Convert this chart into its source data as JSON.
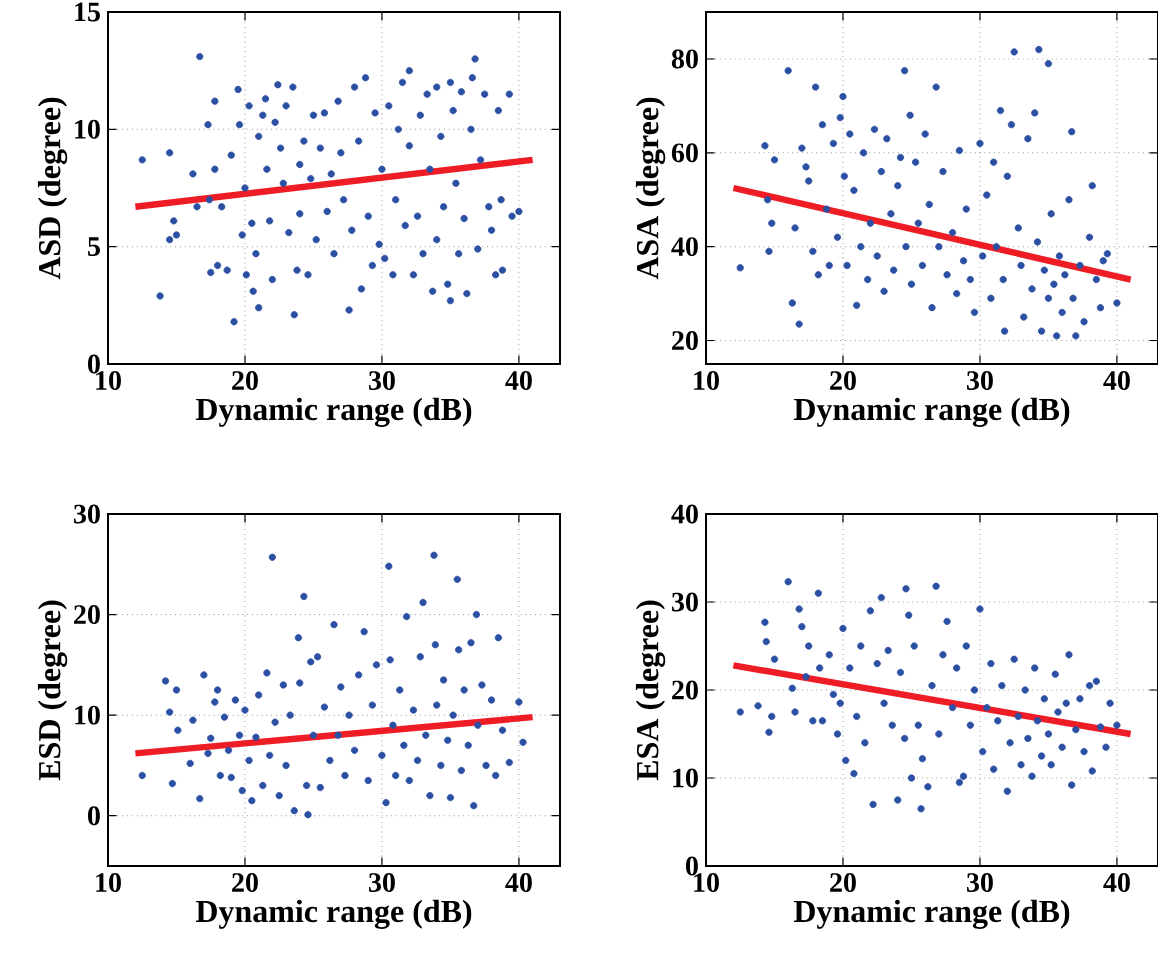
{
  "chart_data": [
    {
      "type": "scatter",
      "xlabel": "Dynamic range (dB)",
      "ylabel": "ASD (degree)",
      "xlim": [
        10,
        43
      ],
      "ylim": [
        0,
        15
      ],
      "xticks": [
        10,
        20,
        30,
        40
      ],
      "yticks": [
        0,
        5,
        10,
        15
      ],
      "grid": true,
      "series": [
        {
          "color": "#2b4fa2",
          "marker": "circle",
          "x": [
            12.5,
            13.8,
            14.5,
            14.5,
            15,
            14.8,
            16.2,
            16.7,
            16.5,
            17.3,
            17.4,
            17.5,
            17.8,
            17.8,
            18,
            18.3,
            18.7,
            19,
            19.2,
            19.5,
            19.6,
            19.8,
            20,
            20.1,
            20.3,
            20.5,
            20.6,
            20.8,
            21,
            21,
            21.3,
            21.5,
            21.6,
            21.8,
            22,
            22.2,
            22.4,
            22.6,
            22.8,
            23,
            23.2,
            23.5,
            23.6,
            23.8,
            24,
            24,
            24.3,
            24.6,
            24.8,
            25,
            25.2,
            25.5,
            25.8,
            26,
            26.3,
            26.5,
            26.8,
            27,
            27.2,
            27.6,
            27.8,
            28,
            28.3,
            28.5,
            28.8,
            29,
            29.3,
            29.5,
            29.8,
            30,
            30.2,
            30.5,
            30.8,
            31,
            31.2,
            31.5,
            31.7,
            32,
            32,
            32.3,
            32.6,
            32.8,
            33,
            33.3,
            33.5,
            33.7,
            34,
            34,
            34.3,
            34.5,
            34.8,
            35,
            35,
            35.2,
            35.4,
            35.6,
            35.8,
            36,
            36.2,
            36.5,
            36.6,
            36.8,
            37,
            37.2,
            37.5,
            37.8,
            38,
            38.3,
            38.5,
            38.8,
            39.3,
            39.5,
            40,
            38.7
          ],
          "values": [
            8.7,
            2.9,
            9.0,
            5.3,
            5.5,
            6.1,
            8.1,
            13.1,
            6.7,
            10.2,
            7.0,
            3.9,
            11.2,
            8.3,
            4.2,
            6.7,
            4.0,
            8.9,
            1.8,
            11.7,
            10.2,
            5.5,
            7.5,
            3.8,
            11,
            6,
            3.1,
            4.7,
            2.4,
            9.7,
            10.6,
            11.3,
            8.3,
            6.1,
            3.6,
            10.3,
            11.9,
            9.2,
            7.7,
            11.0,
            5.6,
            11.8,
            2.1,
            4.0,
            8.5,
            6.4,
            9.5,
            3.8,
            7.9,
            10.6,
            5.3,
            9.2,
            10.7,
            6.5,
            8.1,
            4.7,
            11.2,
            9.0,
            7.0,
            2.3,
            5.7,
            11.8,
            9.5,
            3.2,
            12.2,
            6.3,
            4.2,
            10.7,
            5.1,
            8.3,
            4.5,
            11,
            3.8,
            7.0,
            10.0,
            12.0,
            5.9,
            12.5,
            9.3,
            3.8,
            6.3,
            10.6,
            4.7,
            11.5,
            8.3,
            3.1,
            11.8,
            5.3,
            9.7,
            6.7,
            3.4,
            12.0,
            2.7,
            10.8,
            7.7,
            4.7,
            11.6,
            6.2,
            3.0,
            10.0,
            12.2,
            13.0,
            4.9,
            8.7,
            11.5,
            6.7,
            5.7,
            3.8,
            10.8,
            4.0,
            11.5,
            6.3,
            6.5,
            7.0
          ]
        },
        {
          "type": "line",
          "color": "#ee1c25",
          "x": [
            12,
            41
          ],
          "values": [
            6.7,
            8.7
          ],
          "marker": "none"
        }
      ]
    },
    {
      "type": "scatter",
      "xlabel": "Dynamic range (dB)",
      "ylabel": "ASA (degree)",
      "xlim": [
        10,
        43
      ],
      "ylim": [
        15,
        90
      ],
      "xticks": [
        10,
        20,
        30,
        40
      ],
      "yticks": [
        20,
        40,
        60,
        80
      ],
      "grid": true,
      "series": [
        {
          "color": "#2b4fa2",
          "marker": "circle",
          "x": [
            12.5,
            14.3,
            14.5,
            14.6,
            14.8,
            15,
            16,
            16.3,
            16.5,
            16.8,
            17,
            17.3,
            17.5,
            17.8,
            18,
            18.2,
            18.5,
            18.8,
            19,
            19.3,
            19.6,
            19.8,
            20,
            20.1,
            20.3,
            20.5,
            20.8,
            21,
            21.3,
            21.5,
            21.8,
            22,
            22.3,
            22.5,
            22.8,
            23,
            23.2,
            23.5,
            23.7,
            24,
            24.2,
            24.5,
            24.6,
            24.9,
            25,
            25.3,
            25.5,
            25.8,
            26,
            26.3,
            26.5,
            26.8,
            27,
            27.3,
            27.6,
            28,
            28.3,
            28.5,
            28.8,
            29,
            29.3,
            29.6,
            30,
            30.2,
            30.5,
            30.8,
            31,
            31.2,
            31.5,
            31.7,
            31.8,
            32,
            32.3,
            32.5,
            32.8,
            33,
            33.2,
            33.5,
            33.8,
            34,
            34.2,
            34.3,
            34.5,
            34.7,
            35,
            35,
            35.2,
            35.4,
            35.6,
            35.8,
            36,
            36.2,
            36.5,
            36.7,
            36.8,
            37,
            37.3,
            37.6,
            38,
            38.2,
            38.5,
            38.8,
            39,
            39.3,
            40
          ],
          "values": [
            35.5,
            61.5,
            50,
            39,
            45,
            58.5,
            77.5,
            28,
            44,
            23.5,
            61,
            57,
            54,
            39,
            74,
            34,
            66,
            48,
            36,
            62,
            42,
            67.5,
            72,
            55,
            36,
            64,
            52,
            27.5,
            40,
            60,
            33,
            45,
            65,
            38,
            56,
            30.5,
            63,
            47,
            35,
            53,
            59,
            77.5,
            40,
            68,
            32,
            58,
            45,
            36,
            64,
            49,
            27,
            74,
            40,
            56,
            34,
            43,
            30,
            60.5,
            37,
            48,
            33,
            26,
            62,
            38,
            51,
            29,
            58,
            40,
            69,
            33,
            22,
            55,
            66,
            81.5,
            44,
            36,
            25,
            63,
            31,
            68.5,
            41,
            82,
            22,
            35,
            79,
            29,
            47,
            32,
            21,
            38,
            26,
            34,
            50,
            64.5,
            29,
            21,
            36,
            24,
            42,
            53,
            33,
            27,
            37,
            38.5,
            28
          ]
        },
        {
          "type": "line",
          "color": "#ee1c25",
          "x": [
            12,
            41
          ],
          "values": [
            52.5,
            33
          ],
          "marker": "none"
        }
      ]
    },
    {
      "type": "scatter",
      "xlabel": "Dynamic range (dB)",
      "ylabel": "ESD (degree)",
      "xlim": [
        10,
        43
      ],
      "ylim": [
        -5,
        30
      ],
      "xticks": [
        10,
        20,
        30,
        40
      ],
      "yticks": [
        0,
        10,
        20,
        30
      ],
      "grid": true,
      "series": [
        {
          "color": "#2b4fa2",
          "marker": "circle",
          "x": [
            12.5,
            14.2,
            14.5,
            14.7,
            15,
            15.1,
            16,
            16.2,
            16.7,
            17,
            17.3,
            17.5,
            17.8,
            18,
            18.2,
            18.5,
            18.8,
            19,
            19.3,
            19.6,
            19.8,
            20,
            20.3,
            20.5,
            20.8,
            21,
            21.3,
            21.6,
            21.8,
            22,
            22.2,
            22.5,
            22.8,
            23,
            23.3,
            23.6,
            23.9,
            24,
            24.3,
            24.5,
            24.6,
            24.8,
            25,
            25.3,
            25.5,
            25.8,
            26.2,
            26.5,
            26.8,
            27,
            27.3,
            27.6,
            28,
            28.3,
            28.7,
            29,
            29.3,
            29.6,
            30,
            30.3,
            30.5,
            30.6,
            30.8,
            31,
            31.3,
            31.6,
            31.8,
            32,
            32.3,
            32.6,
            32.8,
            33,
            33.2,
            33.5,
            33.8,
            33.9,
            34,
            34.3,
            34.5,
            34.8,
            35,
            35.2,
            35.5,
            35.6,
            35.8,
            36,
            36.3,
            36.5,
            36.7,
            36.9,
            37,
            37.3,
            37.6,
            38,
            38.3,
            38.5,
            38.8,
            39.3,
            40,
            40.3
          ],
          "values": [
            4,
            13.4,
            10.3,
            3.2,
            12.5,
            8.5,
            5.2,
            9.5,
            1.7,
            14,
            6.2,
            7.7,
            11.3,
            12.5,
            4,
            9.8,
            6.5,
            3.8,
            11.5,
            8,
            2.5,
            10.5,
            5.5,
            1.5,
            7.8,
            12,
            3,
            14.2,
            6,
            25.7,
            9.3,
            2,
            13,
            5,
            10,
            0.5,
            17.7,
            13.2,
            21.8,
            3,
            0.1,
            15.3,
            8,
            15.8,
            2.8,
            10.8,
            5.5,
            19,
            8,
            12.8,
            4,
            10,
            6.5,
            14,
            18.3,
            3.5,
            11,
            15,
            6,
            1.3,
            24.8,
            15.5,
            9,
            4,
            12.5,
            7,
            19.8,
            3.5,
            10.5,
            5.5,
            15.8,
            21.2,
            8,
            2,
            25.9,
            17,
            11,
            5,
            13.5,
            7.5,
            1.8,
            10,
            23.5,
            16.5,
            4.5,
            12.5,
            7,
            17.2,
            1,
            20,
            9,
            13,
            5,
            11.5,
            4,
            17.7,
            8.5,
            5.3,
            11.3,
            7.3
          ]
        },
        {
          "type": "line",
          "color": "#ee1c25",
          "x": [
            12,
            41
          ],
          "values": [
            6.2,
            9.8
          ],
          "marker": "none"
        }
      ]
    },
    {
      "type": "scatter",
      "xlabel": "Dynamic range (dB)",
      "ylabel": "ESA (degree)",
      "xlim": [
        10,
        43
      ],
      "ylim": [
        0,
        40
      ],
      "xticks": [
        10,
        20,
        30,
        40
      ],
      "yticks": [
        0,
        10,
        20,
        30,
        40
      ],
      "grid": true,
      "series": [
        {
          "color": "#2b4fa2",
          "marker": "circle",
          "x": [
            12.5,
            13.8,
            14.3,
            14.4,
            14.6,
            14.8,
            15,
            16,
            16.3,
            16.5,
            16.8,
            17,
            17.3,
            17.5,
            17.8,
            18.2,
            18.3,
            18.5,
            19,
            19.3,
            19.6,
            19.8,
            20,
            20.2,
            20.5,
            20.8,
            21,
            21.3,
            21.6,
            22,
            22.2,
            22.5,
            22.8,
            23,
            23.3,
            23.6,
            24,
            24.2,
            24.5,
            24.6,
            24.8,
            25,
            25.2,
            25.5,
            25.7,
            25.8,
            26.2,
            26.5,
            26.8,
            27,
            27.3,
            27.6,
            28,
            28.3,
            28.5,
            28.8,
            29,
            29.3,
            29.6,
            30,
            30.2,
            30.5,
            30.8,
            31,
            31.3,
            31.6,
            32,
            32.2,
            32.5,
            32.8,
            33,
            33.3,
            33.5,
            33.8,
            34,
            34.2,
            34.5,
            34.7,
            35,
            35.2,
            35.5,
            35.7,
            36,
            36.3,
            36.5,
            36.7,
            37,
            37.3,
            37.6,
            38,
            38.2,
            38.5,
            38.8,
            39.2,
            39.5,
            40
          ],
          "values": [
            17.5,
            18.2,
            27.7,
            25.5,
            15.2,
            17.0,
            23.5,
            32.3,
            20.2,
            17.5,
            29.2,
            27.2,
            21.5,
            25,
            16.5,
            31,
            22.5,
            16.5,
            24,
            19.5,
            15,
            18.5,
            27,
            12,
            22.5,
            10.5,
            17,
            25,
            14,
            29,
            7,
            23,
            30.5,
            18.5,
            24.5,
            16,
            7.5,
            22,
            14.5,
            31.5,
            28.5,
            10,
            25,
            16,
            6.5,
            12.2,
            9,
            20.5,
            31.8,
            15,
            24,
            27.8,
            18,
            22.5,
            9.5,
            10.2,
            25,
            16,
            20,
            29.2,
            13,
            18,
            23,
            11,
            16.5,
            20.5,
            8.5,
            14,
            23.5,
            17,
            11.5,
            20,
            14.5,
            10.2,
            22.5,
            16.5,
            12.5,
            19,
            15,
            11.5,
            21.8,
            17.5,
            13.5,
            18.5,
            24,
            9.2,
            15.5,
            19,
            13,
            20.5,
            10.8,
            21,
            15.8,
            13.5,
            18.5,
            16
          ]
        },
        {
          "type": "line",
          "color": "#ee1c25",
          "x": [
            12,
            41
          ],
          "values": [
            22.8,
            15
          ],
          "marker": "none"
        }
      ]
    }
  ]
}
